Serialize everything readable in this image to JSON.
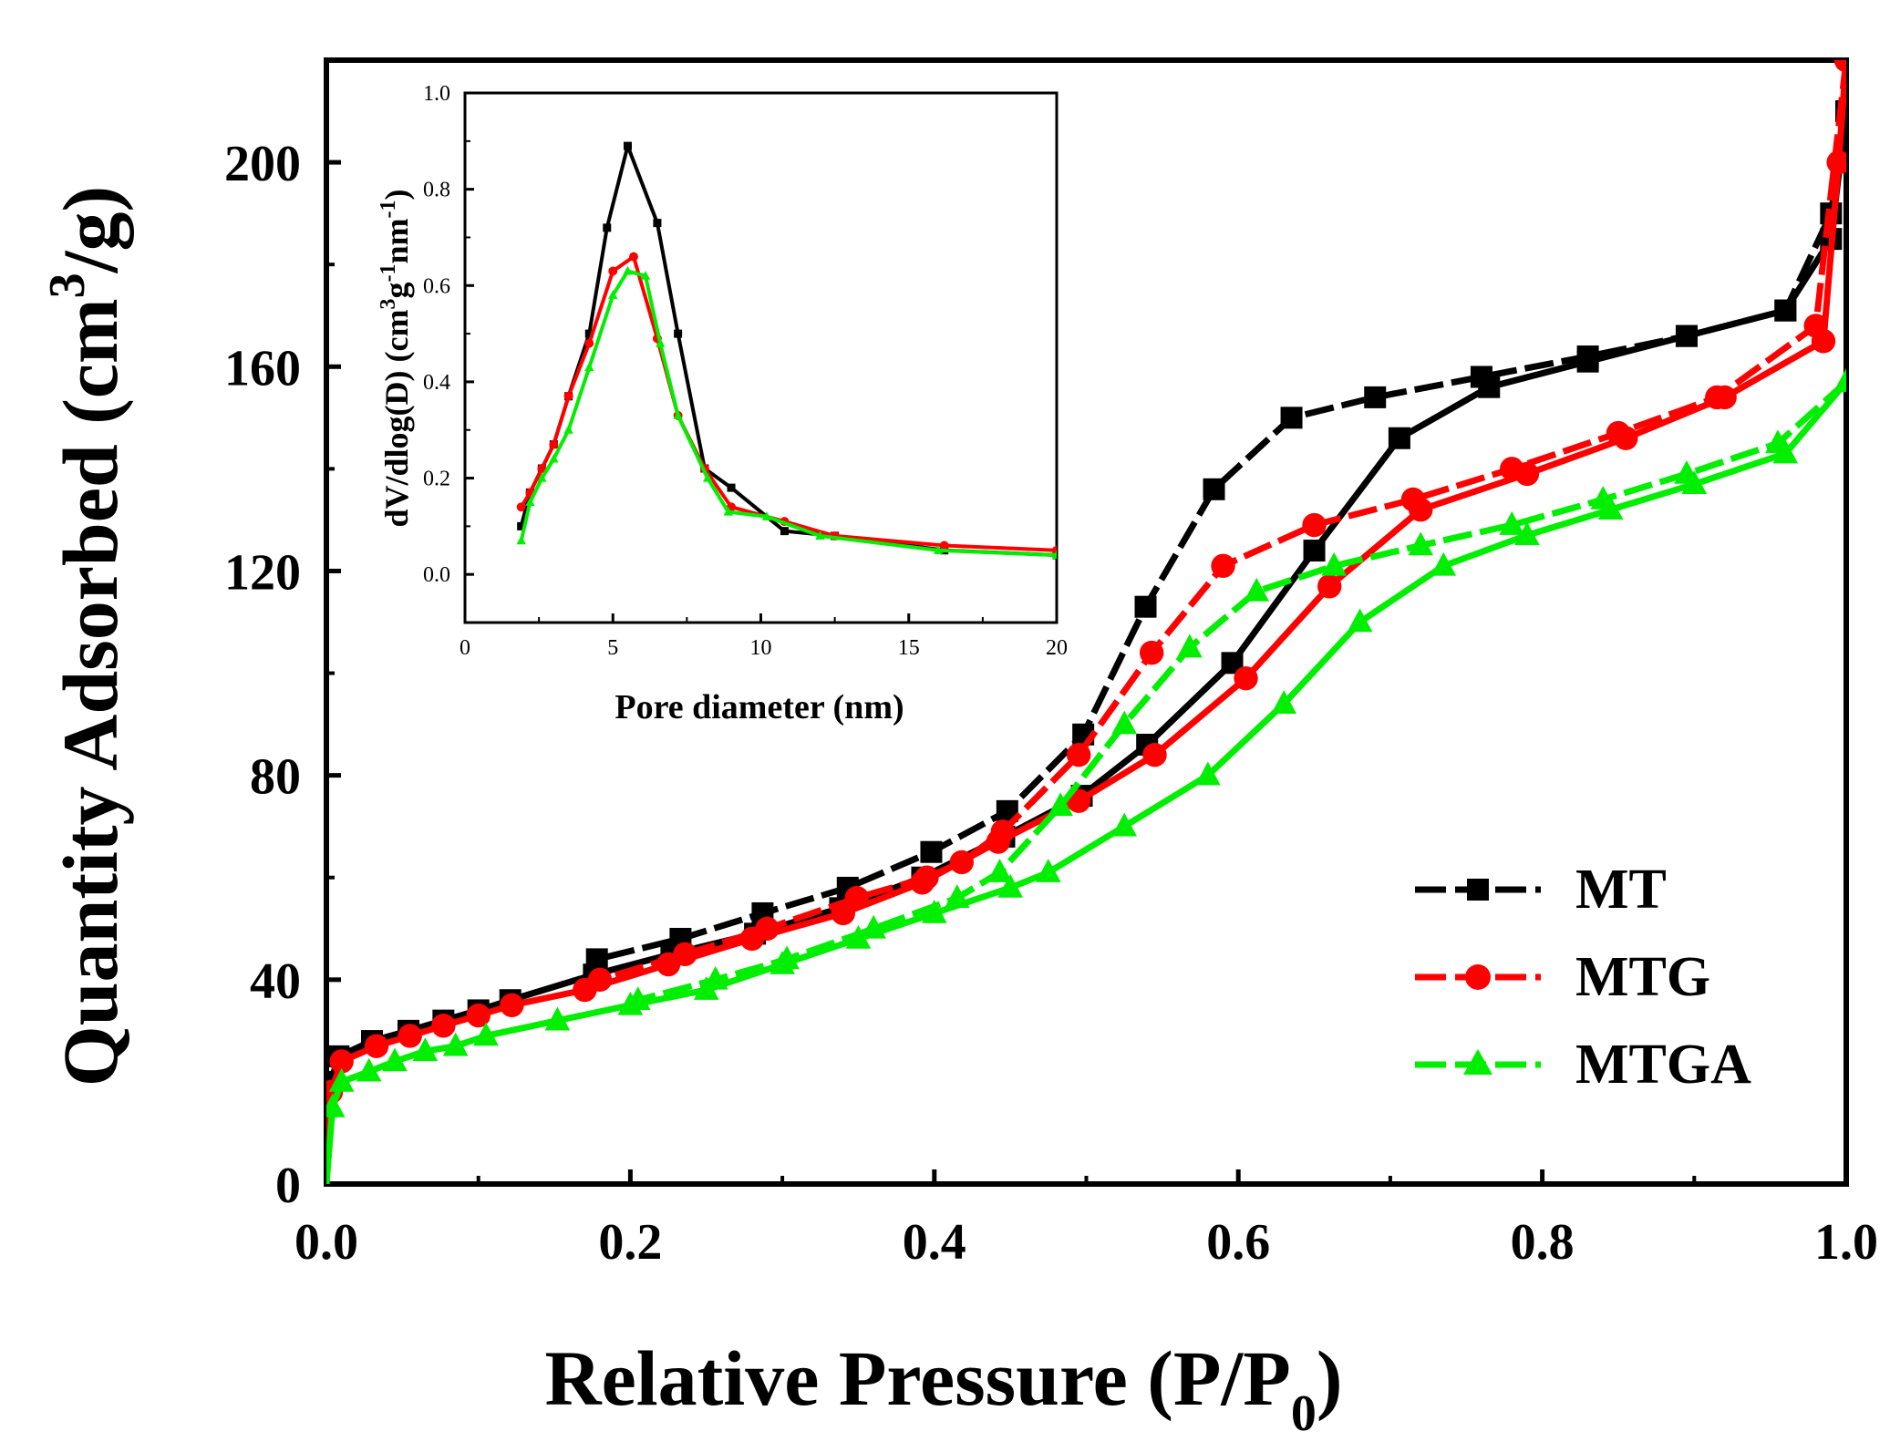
{
  "chart_data": [
    {
      "type": "line",
      "id": "main",
      "title": "",
      "xlabel": "Relative Pressure (P/P",
      "xlabel_sub": "0",
      "xlabel_end": ")",
      "ylabel": "Quantity Adsorbed (cm",
      "ylabel_sup": "3",
      "ylabel_end": "/g)",
      "xlim": [
        0,
        1.0
      ],
      "ylim": [
        0,
        220
      ],
      "xticks": [
        "0.0",
        "0.2",
        "0.4",
        "0.6",
        "0.8",
        "1.0"
      ],
      "yticks": [
        "0",
        "40",
        "80",
        "120",
        "160",
        "200"
      ],
      "legend_position": "bottom-right",
      "series": [
        {
          "name": "MT",
          "color": "#000000",
          "marker": "square",
          "adsorption": [
            [
              0.0,
              0
            ],
            [
              0.003,
              20
            ],
            [
              0.008,
              25
            ],
            [
              0.03,
              28
            ],
            [
              0.054,
              30
            ],
            [
              0.077,
              32
            ],
            [
              0.1,
              34
            ],
            [
              0.121,
              36
            ],
            [
              0.176,
              41
            ],
            [
              0.227,
              45
            ],
            [
              0.282,
              49
            ],
            [
              0.338,
              54
            ],
            [
              0.392,
              60
            ],
            [
              0.446,
              68
            ],
            [
              0.497,
              76
            ],
            [
              0.54,
              86
            ],
            [
              0.596,
              102
            ],
            [
              0.65,
              124
            ],
            [
              0.706,
              146
            ],
            [
              0.765,
              156
            ],
            [
              0.83,
              161
            ],
            [
              0.895,
              166
            ],
            [
              0.96,
              171
            ],
            [
              0.99,
              185
            ],
            [
              1.0,
              210
            ]
          ],
          "desorption": [
            [
              1.0,
              210
            ],
            [
              0.99,
              190
            ],
            [
              0.96,
              171
            ],
            [
              0.895,
              166
            ],
            [
              0.83,
              162
            ],
            [
              0.76,
              158
            ],
            [
              0.69,
              154
            ],
            [
              0.635,
              150
            ],
            [
              0.584,
              136
            ],
            [
              0.539,
              113
            ],
            [
              0.498,
              88
            ],
            [
              0.448,
              73
            ],
            [
              0.398,
              65
            ],
            [
              0.343,
              58
            ],
            [
              0.287,
              53
            ],
            [
              0.233,
              48
            ],
            [
              0.178,
              44
            ]
          ]
        },
        {
          "name": "MTG",
          "color": "#ff0000",
          "marker": "circle",
          "adsorption": [
            [
              0.0,
              0
            ],
            [
              0.003,
              18
            ],
            [
              0.01,
              24
            ],
            [
              0.033,
              27
            ],
            [
              0.055,
              29
            ],
            [
              0.077,
              31
            ],
            [
              0.1,
              33
            ],
            [
              0.122,
              35
            ],
            [
              0.17,
              38
            ],
            [
              0.225,
              43
            ],
            [
              0.28,
              48
            ],
            [
              0.34,
              53
            ],
            [
              0.392,
              59
            ],
            [
              0.442,
              67
            ],
            [
              0.495,
              75
            ],
            [
              0.545,
              84
            ],
            [
              0.605,
              99
            ],
            [
              0.66,
              117
            ],
            [
              0.72,
              132
            ],
            [
              0.79,
              139
            ],
            [
              0.855,
              146
            ],
            [
              0.92,
              154
            ],
            [
              0.985,
              165
            ],
            [
              0.995,
              200
            ],
            [
              1.0,
              220
            ]
          ],
          "desorption": [
            [
              1.0,
              220
            ],
            [
              0.98,
              168
            ],
            [
              0.915,
              154
            ],
            [
              0.85,
              147
            ],
            [
              0.78,
              140
            ],
            [
              0.715,
              134
            ],
            [
              0.65,
              129
            ],
            [
              0.59,
              121
            ],
            [
              0.543,
              104
            ],
            [
              0.495,
              84
            ],
            [
              0.445,
              69
            ],
            [
              0.418,
              63
            ],
            [
              0.395,
              60
            ],
            [
              0.349,
              56
            ],
            [
              0.29,
              50
            ],
            [
              0.236,
              45
            ],
            [
              0.18,
              40
            ]
          ]
        },
        {
          "name": "MTGA",
          "color": "#00ee00",
          "marker": "triangle",
          "adsorption": [
            [
              0.0,
              0
            ],
            [
              0.004,
              15
            ],
            [
              0.01,
              20
            ],
            [
              0.028,
              22
            ],
            [
              0.045,
              24
            ],
            [
              0.065,
              26
            ],
            [
              0.085,
              27
            ],
            [
              0.105,
              29
            ],
            [
              0.152,
              32
            ],
            [
              0.2,
              35
            ],
            [
              0.25,
              38
            ],
            [
              0.3,
              43
            ],
            [
              0.35,
              48
            ],
            [
              0.4,
              53
            ],
            [
              0.45,
              58
            ],
            [
              0.475,
              61
            ],
            [
              0.525,
              70
            ],
            [
              0.58,
              80
            ],
            [
              0.63,
              94
            ],
            [
              0.68,
              110
            ],
            [
              0.735,
              121
            ],
            [
              0.79,
              127
            ],
            [
              0.845,
              132
            ],
            [
              0.9,
              137
            ],
            [
              0.96,
              143
            ],
            [
              1.0,
              157
            ]
          ],
          "desorption": [
            [
              1.0,
              157
            ],
            [
              0.955,
              145
            ],
            [
              0.895,
              139
            ],
            [
              0.84,
              134
            ],
            [
              0.78,
              129
            ],
            [
              0.72,
              125
            ],
            [
              0.663,
              121
            ],
            [
              0.612,
              116
            ],
            [
              0.568,
              105
            ],
            [
              0.525,
              90
            ],
            [
              0.483,
              74
            ],
            [
              0.443,
              61
            ],
            [
              0.415,
              56
            ],
            [
              0.36,
              50
            ],
            [
              0.303,
              44
            ],
            [
              0.256,
              40
            ],
            [
              0.205,
              36
            ]
          ]
        }
      ]
    },
    {
      "type": "line",
      "id": "inset",
      "title": "",
      "xlabel": "Pore diameter (nm)",
      "ylabel": "dV/dlog(D) (cm",
      "ylabel_sup1": "3",
      "ylabel_mid": "g",
      "ylabel_sup2": "-1",
      "ylabel_mid2": "nm",
      "ylabel_sup3": "-1",
      "ylabel_end": ")",
      "xlim": [
        0,
        20
      ],
      "ylim": [
        -0.1,
        1.0
      ],
      "xticks": [
        "0",
        "5",
        "10",
        "15",
        "20"
      ],
      "yticks": [
        "0.0",
        "0.2",
        "0.4",
        "0.6",
        "0.8",
        "1.0"
      ],
      "series": [
        {
          "name": "MT",
          "color": "#000000",
          "marker": "square",
          "points": [
            [
              1.9,
              0.1
            ],
            [
              2.2,
              0.17
            ],
            [
              2.6,
              0.22
            ],
            [
              3.0,
              0.27
            ],
            [
              3.5,
              0.37
            ],
            [
              4.2,
              0.5
            ],
            [
              4.8,
              0.72
            ],
            [
              5.5,
              0.89
            ],
            [
              6.5,
              0.73
            ],
            [
              7.2,
              0.5
            ],
            [
              8.1,
              0.22
            ],
            [
              9.0,
              0.18
            ],
            [
              10.8,
              0.09
            ],
            [
              12.5,
              0.08
            ],
            [
              16.2,
              0.05
            ],
            [
              20,
              0.04
            ]
          ]
        },
        {
          "name": "MTG",
          "color": "#ff0000",
          "marker": "circle",
          "points": [
            [
              1.9,
              0.14
            ],
            [
              2.2,
              0.17
            ],
            [
              2.6,
              0.22
            ],
            [
              3.0,
              0.27
            ],
            [
              3.5,
              0.37
            ],
            [
              4.2,
              0.48
            ],
            [
              5.0,
              0.63
            ],
            [
              5.7,
              0.66
            ],
            [
              6.5,
              0.49
            ],
            [
              7.2,
              0.33
            ],
            [
              8.1,
              0.22
            ],
            [
              9.0,
              0.14
            ],
            [
              10.8,
              0.11
            ],
            [
              12.5,
              0.08
            ],
            [
              16.2,
              0.06
            ],
            [
              20,
              0.05
            ]
          ]
        },
        {
          "name": "MTGA",
          "color": "#00ee00",
          "marker": "triangle",
          "points": [
            [
              1.9,
              0.07
            ],
            [
              2.2,
              0.15
            ],
            [
              2.6,
              0.2
            ],
            [
              3.0,
              0.24
            ],
            [
              3.5,
              0.3
            ],
            [
              4.2,
              0.43
            ],
            [
              5.0,
              0.58
            ],
            [
              5.5,
              0.63
            ],
            [
              6.1,
              0.62
            ],
            [
              6.6,
              0.48
            ],
            [
              7.2,
              0.33
            ],
            [
              8.2,
              0.2
            ],
            [
              8.9,
              0.13
            ],
            [
              10.2,
              0.12
            ],
            [
              12.0,
              0.08
            ],
            [
              16.0,
              0.05
            ],
            [
              20,
              0.04
            ]
          ]
        }
      ]
    }
  ]
}
